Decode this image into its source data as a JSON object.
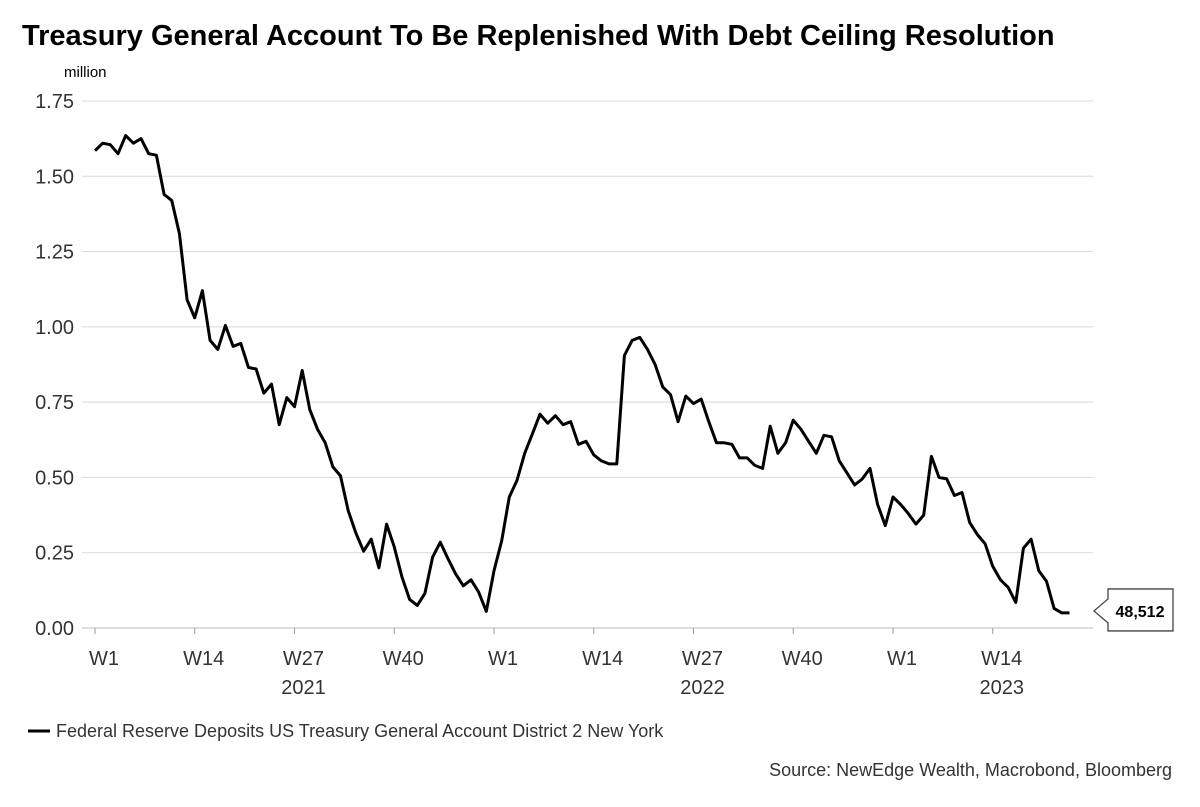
{
  "chart_data": {
    "type": "line",
    "title": "Treasury General Account To Be Replenished With Debt Ceiling Resolution",
    "ylabel": "million",
    "ylim": [
      0,
      1.75
    ],
    "yticks": [
      "0.00",
      "0.25",
      "0.50",
      "0.75",
      "1.00",
      "1.25",
      "1.50",
      "1.75"
    ],
    "xlim": [
      0,
      126
    ],
    "xtick_labels": [
      "W1",
      "W14",
      "W27",
      "W40",
      "W1",
      "W14",
      "W27",
      "W40",
      "W1",
      "W14"
    ],
    "years": [
      "2021",
      "2022",
      "2023"
    ],
    "series": [
      {
        "name": "Federal Reserve Deposits US Treasury General Account District 2 New York",
        "color": "#000000",
        "values": [
          1.585,
          1.61,
          1.605,
          1.575,
          1.635,
          1.61,
          1.625,
          1.575,
          1.57,
          1.44,
          1.42,
          1.31,
          1.09,
          1.03,
          1.12,
          0.955,
          0.925,
          1.005,
          0.935,
          0.945,
          0.865,
          0.86,
          0.78,
          0.81,
          0.675,
          0.765,
          0.735,
          0.855,
          0.725,
          0.66,
          0.615,
          0.535,
          0.505,
          0.39,
          0.315,
          0.255,
          0.295,
          0.2,
          0.345,
          0.27,
          0.17,
          0.095,
          0.075,
          0.115,
          0.235,
          0.285,
          0.23,
          0.18,
          0.14,
          0.16,
          0.12,
          0.055,
          0.19,
          0.29,
          0.435,
          0.49,
          0.58,
          0.645,
          0.71,
          0.68,
          0.705,
          0.675,
          0.685,
          0.61,
          0.62,
          0.575,
          0.555,
          0.545,
          0.545,
          0.905,
          0.955,
          0.965,
          0.925,
          0.875,
          0.8,
          0.775,
          0.685,
          0.77,
          0.745,
          0.76,
          0.685,
          0.615,
          0.615,
          0.61,
          0.565,
          0.565,
          0.54,
          0.53,
          0.67,
          0.58,
          0.615,
          0.69,
          0.66,
          0.62,
          0.58,
          0.64,
          0.635,
          0.555,
          0.515,
          0.475,
          0.495,
          0.53,
          0.41,
          0.34,
          0.435,
          0.41,
          0.38,
          0.345,
          0.375,
          0.57,
          0.5,
          0.495,
          0.44,
          0.45,
          0.35,
          0.31,
          0.28,
          0.205,
          0.16,
          0.135,
          0.085,
          0.265,
          0.295,
          0.19,
          0.155,
          0.065,
          0.05,
          0.05
        ]
      }
    ],
    "last_value_label": "48,512",
    "legend": "Federal Reserve Deposits US Treasury General Account District 2 New York",
    "source": "Source: NewEdge Wealth, Macrobond, Bloomberg"
  }
}
